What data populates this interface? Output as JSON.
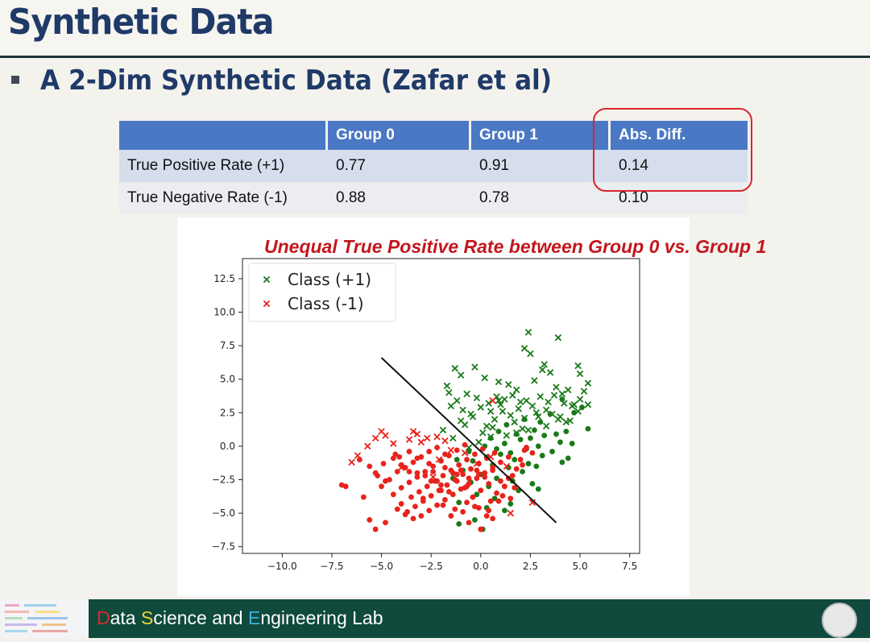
{
  "slide": {
    "title": "Synthetic Data",
    "subtitle": "A 2-Dim Synthetic Data (Zafar et al)",
    "annotation": "Unequal True Positive Rate between Group 0 vs. Group 1"
  },
  "table": {
    "headers": [
      "",
      "Group 0",
      "Group 1",
      "Abs. Diff."
    ],
    "rows": [
      [
        "True Positive Rate (+1)",
        "0.77",
        "0.91",
        "0.14"
      ],
      [
        "True Negative Rate (-1)",
        "0.88",
        "0.78",
        "0.10"
      ]
    ]
  },
  "footer": {
    "lab_letter_d": "D",
    "lab_part_1": "ata ",
    "lab_letter_s": "S",
    "lab_part_2": "cience and ",
    "lab_letter_e": "E",
    "lab_part_3": "ngineering Lab"
  },
  "colors": {
    "title": "#1f3a68",
    "header_fill": "#4a78c4",
    "highlight": "#d8262d",
    "annotation": "#c3161c",
    "class_pos": "#1a7a1a",
    "class_neg": "#e8231c",
    "footer": "#0f4a3c"
  },
  "chart_data": {
    "type": "scatter",
    "title": "",
    "xlabel": "",
    "ylabel": "",
    "xlim": [
      -12,
      8
    ],
    "ylim": [
      -8,
      14
    ],
    "xticks": [
      "−10.0",
      "−7.5",
      "−5.0",
      "−2.5",
      "0.0",
      "2.5",
      "5.0",
      "7.5"
    ],
    "yticks": [
      "−7.5",
      "−5.0",
      "−2.5",
      "0.0",
      "2.5",
      "5.0",
      "7.5",
      "10.0",
      "12.5"
    ],
    "xtick_values": [
      -10,
      -7.5,
      -5,
      -2.5,
      0,
      2.5,
      5,
      7.5
    ],
    "ytick_values": [
      -7.5,
      -5,
      -2.5,
      0,
      2.5,
      5,
      7.5,
      10,
      12.5
    ],
    "grid": false,
    "legend": "top-left",
    "decision_boundary": [
      [
        -5.0,
        6.6
      ],
      [
        3.8,
        -5.7
      ]
    ],
    "series": [
      {
        "name": "Class (+1)",
        "marker": "x",
        "color": "#1a7a1a",
        "x": [
          2.4,
          3.9,
          2.2,
          2.5,
          3.2,
          4.9,
          5.0,
          5.4,
          -1.3,
          -0.3,
          -1.7,
          -1.0,
          0.2,
          0.9,
          1.4,
          1.8,
          2.7,
          3.1,
          3.5,
          3.8,
          4.1,
          4.4,
          4.7,
          5.2,
          -1.6,
          -1.2,
          -0.7,
          -0.2,
          0.4,
          0.8,
          1.2,
          1.6,
          2.0,
          2.3,
          2.6,
          3.0,
          3.4,
          3.7,
          4.2,
          4.6,
          5.0,
          5.4,
          -1.5,
          -0.9,
          -0.5,
          0.0,
          0.5,
          1.0,
          1.5,
          1.9,
          2.2,
          2.8,
          3.3,
          3.6,
          4.0,
          4.5,
          4.9,
          -1.0,
          -0.4,
          0.3,
          0.7,
          1.1,
          1.7,
          2.1,
          2.9,
          3.3,
          -0.8,
          0.1,
          0.6,
          1.3,
          2.4,
          -1.9,
          -1.4,
          -0.1,
          0.5,
          1.8,
          3.9,
          4.3,
          -0.6,
          0.9
        ],
        "y": [
          8.5,
          8.1,
          7.3,
          6.9,
          6.1,
          6.0,
          5.4,
          4.7,
          5.8,
          5.9,
          4.5,
          5.3,
          5.1,
          4.8,
          4.6,
          4.2,
          4.9,
          5.7,
          5.5,
          4.4,
          3.9,
          4.2,
          3.1,
          4.1,
          4.0,
          3.4,
          3.9,
          3.6,
          3.2,
          3.7,
          3.5,
          3.8,
          3.3,
          3.4,
          3.0,
          3.7,
          3.3,
          3.8,
          3.2,
          3.0,
          3.5,
          3.1,
          3.0,
          2.7,
          2.4,
          2.9,
          2.6,
          3.1,
          2.3,
          2.8,
          2.1,
          2.5,
          2.7,
          2.4,
          2.2,
          1.9,
          2.6,
          1.9,
          2.2,
          1.5,
          2.0,
          2.6,
          1.8,
          1.3,
          2.2,
          1.5,
          1.6,
          1.0,
          1.4,
          0.8,
          1.2,
          1.2,
          0.6,
          0.3,
          0.7,
          1.0,
          2.0,
          1.8,
          -0.1,
          3.4
        ]
      },
      {
        "name": "Class (+1)",
        "marker": "o",
        "color": "#1a7a1a",
        "x": [
          4.1,
          5.1,
          4.7,
          5.4,
          3.5,
          2.2,
          3.0,
          4.3,
          1.3,
          2.7,
          3.8,
          4.6,
          0.9,
          1.8,
          2.5,
          3.2,
          4.0,
          0.5,
          1.2,
          2.0,
          2.9,
          3.6,
          4.4,
          0.2,
          0.8,
          1.5,
          2.3,
          3.1,
          4.1,
          -0.6,
          0.3,
          1.0,
          1.7,
          2.4,
          -1.2,
          -0.4,
          0.6,
          1.4,
          2.1,
          -0.9,
          0.0,
          0.8,
          1.6,
          2.6,
          -1.4,
          -0.5,
          0.4,
          1.9,
          -0.2,
          0.7,
          -1.1,
          0.3,
          1.2,
          2.8,
          2.9,
          1.5,
          -0.3,
          -1.1,
          0.1
        ],
        "y": [
          3.5,
          2.9,
          2.5,
          1.3,
          2.4,
          2.0,
          1.8,
          1.1,
          1.6,
          1.2,
          0.9,
          0.2,
          1.1,
          0.9,
          0.6,
          0.8,
          0.3,
          0.6,
          0.2,
          0.5,
          0.0,
          -0.4,
          -0.9,
          0.0,
          -0.2,
          -0.5,
          -0.2,
          -0.7,
          -1.2,
          -0.4,
          -0.8,
          -0.6,
          -1.0,
          -1.3,
          -1.0,
          -1.1,
          -1.4,
          -1.6,
          -1.9,
          -1.8,
          -2.1,
          -2.4,
          -2.6,
          -2.8,
          -2.4,
          -2.7,
          -3.0,
          -3.3,
          -3.6,
          -3.9,
          -4.2,
          -4.6,
          -4.8,
          -1.5,
          -3.2,
          -4.3,
          -5.5,
          -5.8,
          -6.2
        ]
      },
      {
        "name": "Class (-1)",
        "marker": "x",
        "color": "#e8231c",
        "x": [
          -5.0,
          -4.8,
          -5.3,
          -3.4,
          -3.2,
          -2.7,
          -2.2,
          -1.8,
          -1.5,
          -3.0,
          -3.6,
          -4.4,
          -5.7,
          -6.2,
          -6.5,
          -2.1,
          -0.8,
          -0.2,
          0.5,
          1.3,
          2.6,
          -4.0,
          -2.4,
          0.6,
          1.5
        ],
        "y": [
          1.1,
          0.8,
          0.6,
          1.1,
          0.9,
          0.6,
          0.7,
          0.4,
          -0.3,
          0.3,
          0.5,
          0.2,
          0.0,
          -0.7,
          -1.2,
          -1.0,
          -0.5,
          -1.3,
          -0.8,
          -1.5,
          -4.2,
          -1.6,
          -2.3,
          3.4,
          -5.0
        ]
      },
      {
        "name": "Class (-1)",
        "marker": "o",
        "color": "#e8231c",
        "x": [
          -7.0,
          -6.8,
          -5.9,
          -5.3,
          -4.9,
          -4.3,
          -6.1,
          -5.6,
          -5.2,
          -4.8,
          -4.4,
          -4.0,
          -3.6,
          -3.2,
          -5.0,
          -4.6,
          -4.2,
          -3.8,
          -3.4,
          -3.0,
          -2.6,
          -2.2,
          -1.8,
          -4.4,
          -4.0,
          -3.6,
          -3.2,
          -2.8,
          -2.4,
          -2.0,
          -1.6,
          -1.2,
          -0.8,
          -4.0,
          -3.5,
          -3.1,
          -2.7,
          -2.3,
          -1.9,
          -1.5,
          -1.1,
          -0.7,
          -0.3,
          0.1,
          -3.7,
          -3.3,
          -2.9,
          -2.5,
          -2.1,
          -1.7,
          -1.3,
          -0.9,
          -0.5,
          -0.1,
          0.3,
          0.7,
          -3.0,
          -2.6,
          -2.2,
          -1.8,
          -1.4,
          -1.0,
          -0.6,
          -0.2,
          0.2,
          0.6,
          1.0,
          1.4,
          -2.8,
          -2.4,
          -2.0,
          -1.6,
          -1.2,
          -0.8,
          -0.4,
          0.0,
          0.4,
          0.8,
          1.2,
          1.6,
          2.0,
          -3.2,
          -2.6,
          -2.2,
          -1.8,
          -1.4,
          -1.0,
          -0.6,
          -0.2,
          0.2,
          0.6,
          1.0,
          1.4,
          1.8,
          2.2,
          2.6,
          -1.9,
          -1.3,
          -0.7,
          -0.1,
          0.5,
          1.1,
          1.7,
          2.3,
          -1.5,
          -0.9,
          -0.3,
          0.3,
          0.9,
          1.5,
          2.1,
          -0.6,
          0.0,
          0.6,
          1.2,
          -4.2,
          -3.8,
          -3.4,
          -4.8,
          -5.3,
          -5.6,
          -2.9,
          -2.5,
          -3.6,
          -4.1,
          -2.0,
          -1.2,
          0.4,
          -0.1,
          -0.7
        ],
        "y": [
          -2.9,
          -3.0,
          -3.8,
          -2.0,
          -1.3,
          -0.6,
          -1.0,
          -1.5,
          -2.2,
          -2.6,
          -0.9,
          -1.4,
          -0.4,
          -0.9,
          -3.0,
          -2.5,
          -1.9,
          -1.6,
          -1.2,
          -0.8,
          -0.4,
          -0.1,
          -0.6,
          -3.6,
          -3.1,
          -2.7,
          -2.3,
          -1.9,
          -1.5,
          -1.1,
          -0.7,
          -0.3,
          0.1,
          -4.3,
          -3.8,
          -3.4,
          -3.0,
          -2.6,
          -2.2,
          -1.8,
          -1.4,
          -1.0,
          -0.6,
          -0.2,
          -4.9,
          -4.5,
          -4.1,
          -3.7,
          -3.3,
          -2.9,
          -2.5,
          -2.1,
          -1.7,
          -1.3,
          -0.9,
          -0.5,
          -5.2,
          -4.8,
          -4.4,
          -4.0,
          -3.6,
          -3.2,
          -2.8,
          -2.4,
          -2.0,
          -1.6,
          -1.2,
          -0.8,
          -2.2,
          -1.9,
          -2.9,
          -3.4,
          -2.6,
          -3.1,
          -3.8,
          -3.3,
          -2.8,
          -3.5,
          -3.0,
          -2.2,
          -1.0,
          -2.0,
          -1.3,
          -2.6,
          -1.6,
          -2.0,
          -1.8,
          -2.4,
          -1.8,
          -2.3,
          -1.8,
          -2.6,
          -2.4,
          -1.7,
          -0.3,
          -0.5,
          -4.4,
          -4.7,
          -4.2,
          -4.6,
          -4.1,
          -3.7,
          -3.1,
          -0.1,
          -5.2,
          -4.9,
          -4.5,
          -5.2,
          -4.1,
          -3.9,
          -1.4,
          -5.7,
          -6.2,
          -5.4,
          -3.0,
          -4.7,
          -5.1,
          -5.4,
          -5.7,
          -6.2,
          -5.5,
          -3.9,
          -2.6,
          -1.9,
          -0.8,
          -3.3,
          -2.1,
          -4.8,
          -2.1,
          -3.0
        ]
      }
    ]
  }
}
